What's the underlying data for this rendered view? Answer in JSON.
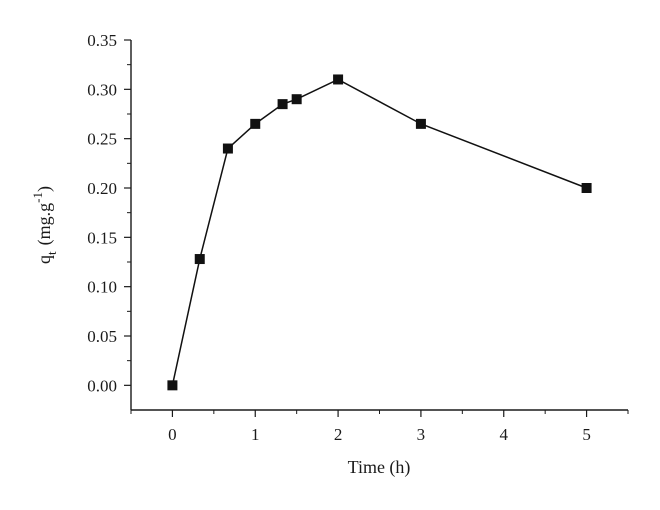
{
  "chart_data": {
    "type": "line",
    "title": "",
    "xlabel": "Time (h)",
    "ylabel": {
      "main": "q",
      "sub": "t",
      "unit": "(mg.g",
      "sup": "-1",
      "close": ")"
    },
    "xlim": [
      -0.5,
      5.5
    ],
    "ylim": [
      -0.025,
      0.35
    ],
    "xticks": [
      0,
      1,
      2,
      3,
      4,
      5
    ],
    "xtick_labels": [
      "0",
      "1",
      "2",
      "3",
      "4",
      "5"
    ],
    "yticks": [
      0.0,
      0.05,
      0.1,
      0.15,
      0.2,
      0.25,
      0.3,
      0.35
    ],
    "ytick_labels": [
      "0.00",
      "0.05",
      "0.10",
      "0.15",
      "0.20",
      "0.25",
      "0.30",
      "0.35"
    ],
    "grid": false,
    "marker": "square",
    "color": "#111111",
    "series": [
      {
        "x": [
          0,
          0.33,
          0.67,
          1,
          1.33,
          1.5,
          2,
          3,
          5
        ],
        "y": [
          0.0,
          0.128,
          0.24,
          0.265,
          0.285,
          0.29,
          0.31,
          0.265,
          0.2
        ]
      }
    ]
  }
}
